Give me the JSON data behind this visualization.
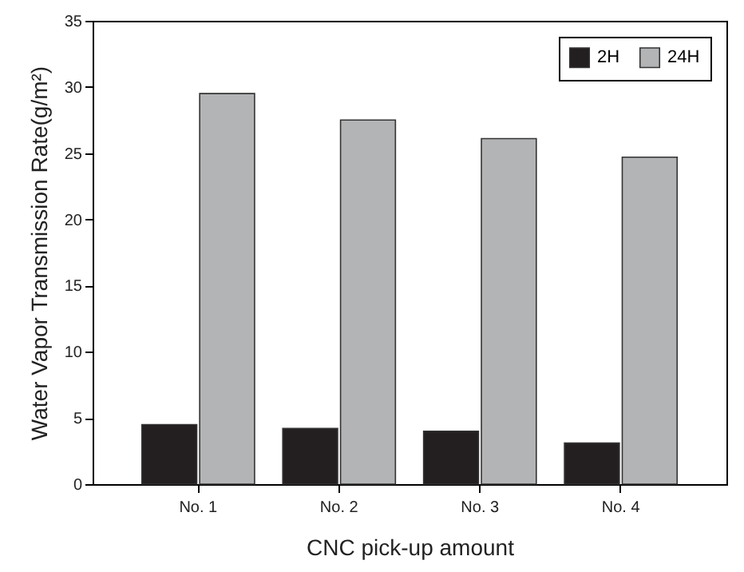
{
  "chart_data": {
    "type": "bar",
    "xlabel": "CNC pick-up amount",
    "ylabel": "Water Vapor Transmission Rate(g/m²)",
    "categories": [
      "No. 1",
      "No. 2",
      "No. 3",
      "No. 4"
    ],
    "series": [
      {
        "name": "2H",
        "color": "#231f20",
        "values": [
          4.5,
          4.2,
          4.0,
          3.1
        ]
      },
      {
        "name": "24H",
        "color": "#b3b4b6",
        "values": [
          29.5,
          27.5,
          26.1,
          24.7
        ]
      }
    ],
    "ylim": [
      0,
      35
    ],
    "yticks": [
      0,
      5,
      10,
      15,
      20,
      25,
      30,
      35
    ],
    "legend": "top right"
  }
}
